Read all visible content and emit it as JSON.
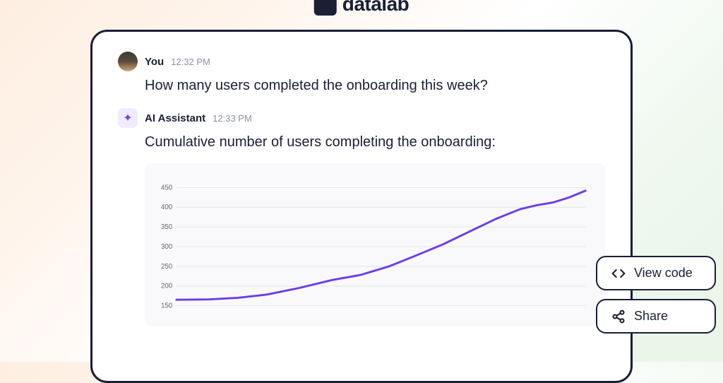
{
  "logo": {
    "text": "datalab"
  },
  "messages": {
    "user": {
      "name": "You",
      "timestamp": "12:32 PM",
      "text": "How many users completed the onboarding this week?"
    },
    "ai": {
      "name": "AI Assistant",
      "timestamp": "12:33 PM",
      "text": "Cumulative number of users completing the onboarding:"
    }
  },
  "chart": {
    "type": "line",
    "background_color": "#f9f9fb",
    "line_color": "#6d3ce8",
    "line_width": 3,
    "grid_color": "#e5e5e5",
    "y_label_color": "#666666",
    "y_label_fontsize": 10,
    "ylim": [
      140,
      460
    ],
    "ytick_step": 50,
    "ytick_labels": [
      "150",
      "200",
      "250",
      "300",
      "350",
      "400",
      "450"
    ],
    "points": [
      {
        "x": 0.0,
        "y": 165
      },
      {
        "x": 0.08,
        "y": 166
      },
      {
        "x": 0.15,
        "y": 170
      },
      {
        "x": 0.22,
        "y": 178
      },
      {
        "x": 0.3,
        "y": 195
      },
      {
        "x": 0.38,
        "y": 215
      },
      {
        "x": 0.45,
        "y": 228
      },
      {
        "x": 0.52,
        "y": 250
      },
      {
        "x": 0.58,
        "y": 275
      },
      {
        "x": 0.65,
        "y": 305
      },
      {
        "x": 0.72,
        "y": 340
      },
      {
        "x": 0.78,
        "y": 370
      },
      {
        "x": 0.84,
        "y": 395
      },
      {
        "x": 0.88,
        "y": 405
      },
      {
        "x": 0.92,
        "y": 412
      },
      {
        "x": 0.96,
        "y": 425
      },
      {
        "x": 1.0,
        "y": 442
      }
    ]
  },
  "buttons": {
    "view_code": "View code",
    "share": "Share"
  },
  "colors": {
    "text_primary": "#1a1f36",
    "text_muted": "#8892a6",
    "ai_accent": "#7c3aed",
    "card_bg": "#ffffff"
  }
}
